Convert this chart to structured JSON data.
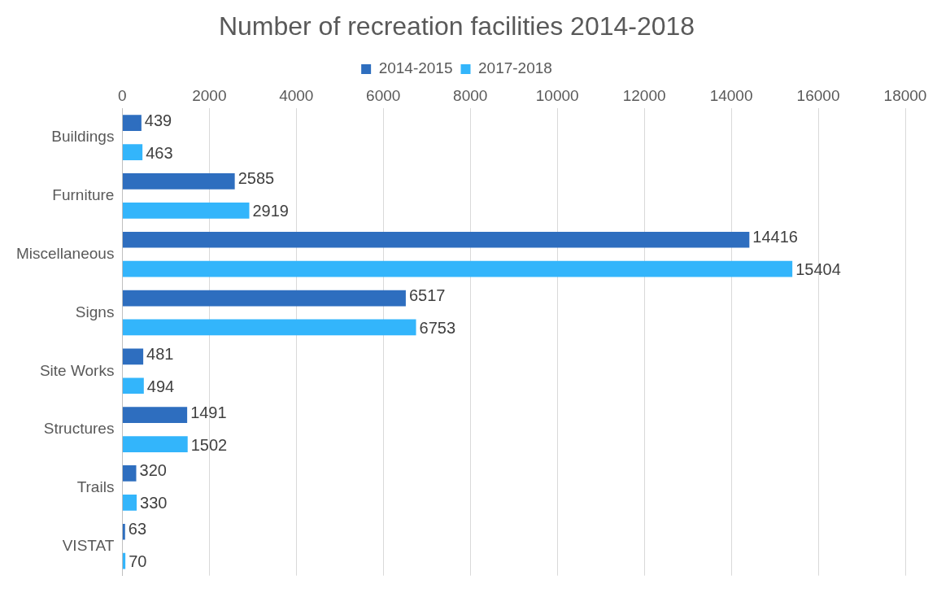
{
  "chart_data": {
    "type": "bar",
    "orientation": "horizontal",
    "title": "Number of recreation facilities 2014-2018",
    "categories": [
      "Buildings",
      "Furniture",
      "Miscellaneous",
      "Signs",
      "Site Works",
      "Structures",
      "Trails",
      "VISTAT"
    ],
    "series": [
      {
        "name": "2014-2015",
        "color": "#2e6ebf",
        "values": [
          439,
          2585,
          14416,
          6517,
          481,
          1491,
          320,
          63
        ]
      },
      {
        "name": "2017-2018",
        "color": "#33b5fb",
        "values": [
          463,
          2919,
          15404,
          6753,
          494,
          1502,
          330,
          70
        ]
      }
    ],
    "xlim": [
      0,
      18000
    ],
    "xticks": [
      0,
      2000,
      4000,
      6000,
      8000,
      10000,
      12000,
      14000,
      16000,
      18000
    ],
    "grid": "x",
    "legend": "top",
    "data_labels": true
  }
}
